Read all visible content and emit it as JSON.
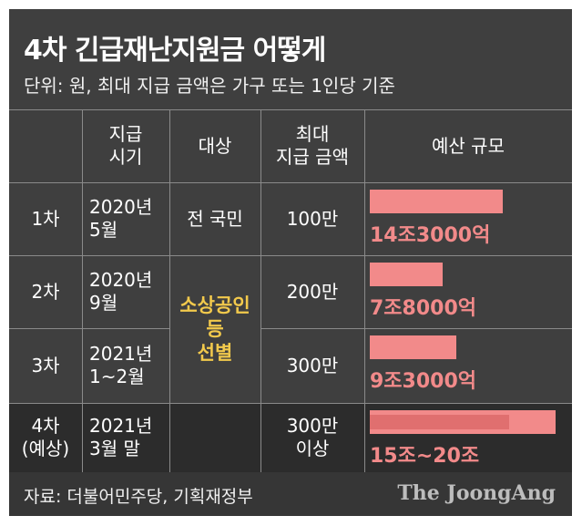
{
  "title": "4차 긴급재난지원금 어떻게",
  "subtitle": "단위: 원, 최대 지급 금액은 가구 또는 1인당 기준",
  "table": {
    "headers": [
      "",
      "지급\n시기",
      "대상",
      "최대\n지급 금액",
      "예산 규모"
    ],
    "rows": [
      {
        "round": "1차",
        "timing": "2020년\n5월",
        "target": "전 국민",
        "max_amount": "100만",
        "budget_label": "14조3000억"
      },
      {
        "round": "2차",
        "timing": "2020년\n9월",
        "target": "",
        "max_amount": "200만",
        "budget_label": "7조8000억"
      },
      {
        "round": "3차",
        "timing": "2021년\n1~2월",
        "target": "",
        "max_amount": "300만",
        "budget_label": "9조3000억"
      },
      {
        "round": "4차\n(예상)",
        "timing": "2021년\n3월 말",
        "target": "",
        "max_amount": "300만\n이상",
        "budget_label": "15조~20조"
      }
    ],
    "merged_target": "소상공인\n등\n선별"
  },
  "chart_data": {
    "type": "bar",
    "categories": [
      "1차",
      "2차",
      "3차",
      "4차(예상)"
    ],
    "series": [
      {
        "values": [
          14.3,
          7.8,
          9.3,
          20
        ]
      }
    ],
    "range_low": [
      null,
      null,
      null,
      15
    ],
    "labels": [
      "14조3000억",
      "7조8000억",
      "9조3000억",
      "15조~20조"
    ],
    "xlim": [
      0,
      20
    ]
  },
  "footer": {
    "source": "자료: 더불어민주당, 기획재정부",
    "brand": "The JoongAng"
  },
  "colors": {
    "background": "#3f3f3f",
    "bar": "#f28a8a",
    "bar_range": "#e06f6f",
    "highlight_text": "#f2c94c"
  }
}
